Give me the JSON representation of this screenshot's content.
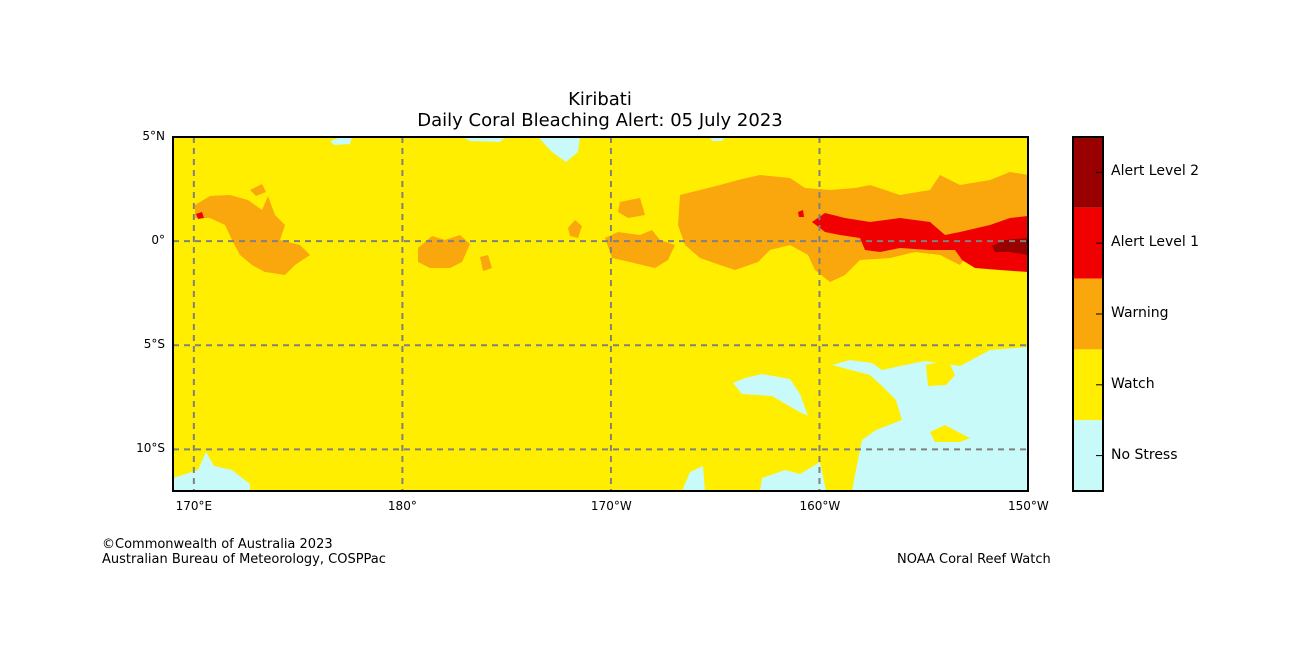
{
  "chart_data": {
    "type": "heatmap",
    "title": "Kiribati",
    "subtitle": "Daily Coral Bleaching Alert: 05 July 2023",
    "x_ticks": [
      {
        "lon": 170,
        "label": "170°E"
      },
      {
        "lon": 180,
        "label": "180°"
      },
      {
        "lon": 190,
        "label": "170°W"
      },
      {
        "lon": 200,
        "label": "160°W"
      },
      {
        "lon": 210,
        "label": "150°W"
      }
    ],
    "y_ticks": [
      {
        "lat": 5,
        "label": "5°N"
      },
      {
        "lat": 0,
        "label": "0°"
      },
      {
        "lat": -5,
        "label": "5°S"
      },
      {
        "lat": -10,
        "label": "10°S"
      }
    ],
    "xlim": [
      169,
      210
    ],
    "ylim": [
      -12,
      5
    ],
    "grid": true,
    "legend": {
      "placement": "right colorbar",
      "levels": [
        {
          "label": "Alert Level 2",
          "color": "#990000"
        },
        {
          "label": "Alert Level 1",
          "color": "#f00000"
        },
        {
          "label": "Warning",
          "color": "#f9a70c"
        },
        {
          "label": "Watch",
          "color": "#ffee00"
        },
        {
          "label": "No Stress",
          "color": "#c8fafa"
        }
      ]
    }
  },
  "footer": {
    "copyright": "©Commonwealth of Australia 2023",
    "bureau": "Australian Bureau of Meteorology, COSPPac",
    "source": "NOAA Coral Reef Watch"
  }
}
